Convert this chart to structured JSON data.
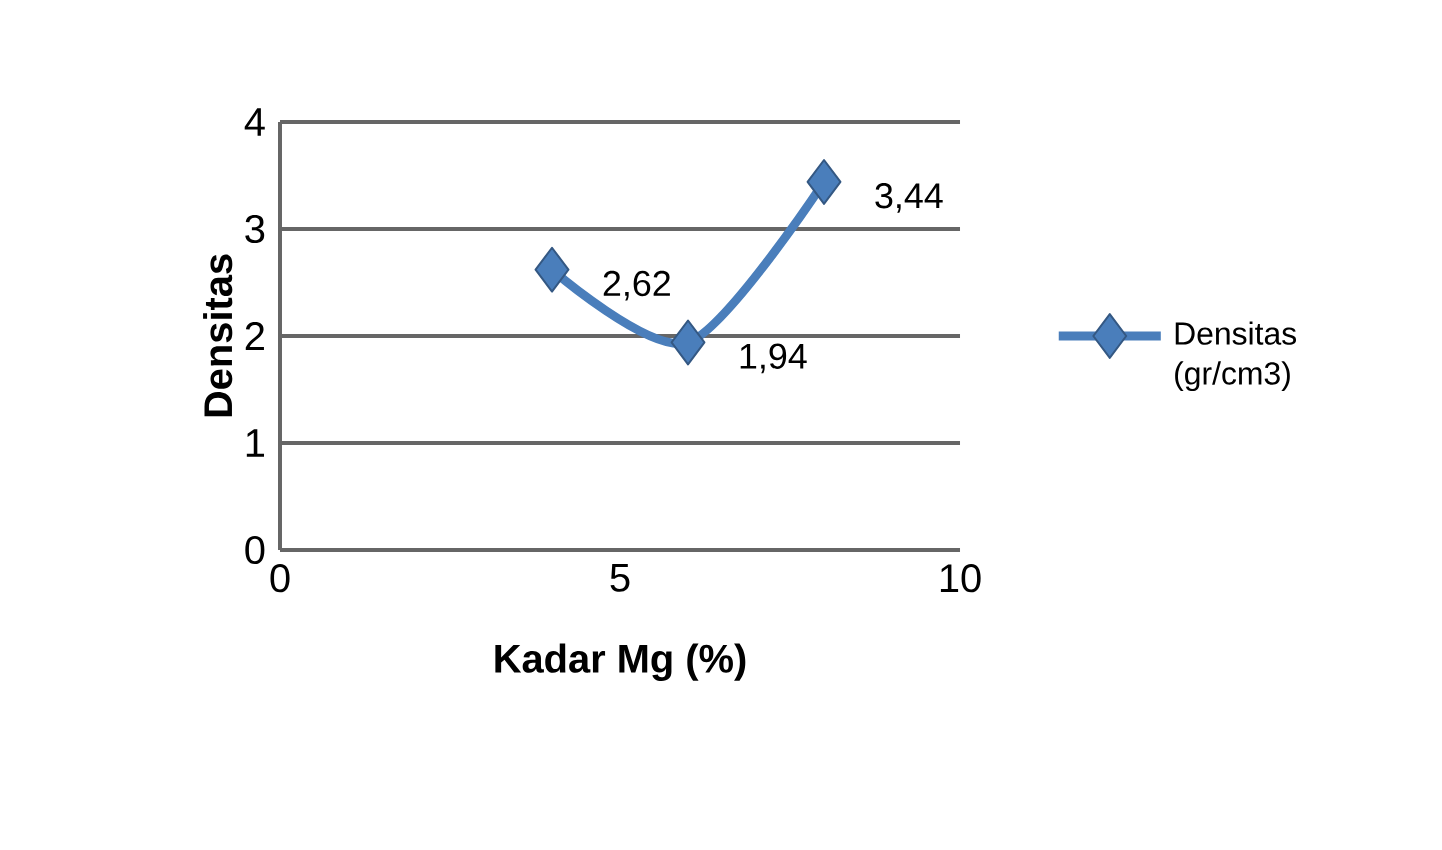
{
  "chart_data": {
    "type": "line",
    "xlabel": "Kadar Mg (%)",
    "ylabel": "Densitas",
    "x": [
      4,
      6,
      8
    ],
    "series": [
      {
        "name": "Densitas (gr/cm3)",
        "color": "#4a7ebb",
        "values": [
          2.62,
          1.94,
          3.44
        ],
        "value_labels": [
          "2,62",
          "1,94",
          "3,44"
        ]
      }
    ],
    "xlim": [
      0,
      10
    ],
    "xticks": [
      0,
      5,
      10
    ],
    "ylim": [
      0,
      4
    ],
    "yticks": [
      0,
      1,
      2,
      3,
      4
    ],
    "grid": "y",
    "legend": "right",
    "marker": "diamond",
    "line_style": "solid"
  }
}
